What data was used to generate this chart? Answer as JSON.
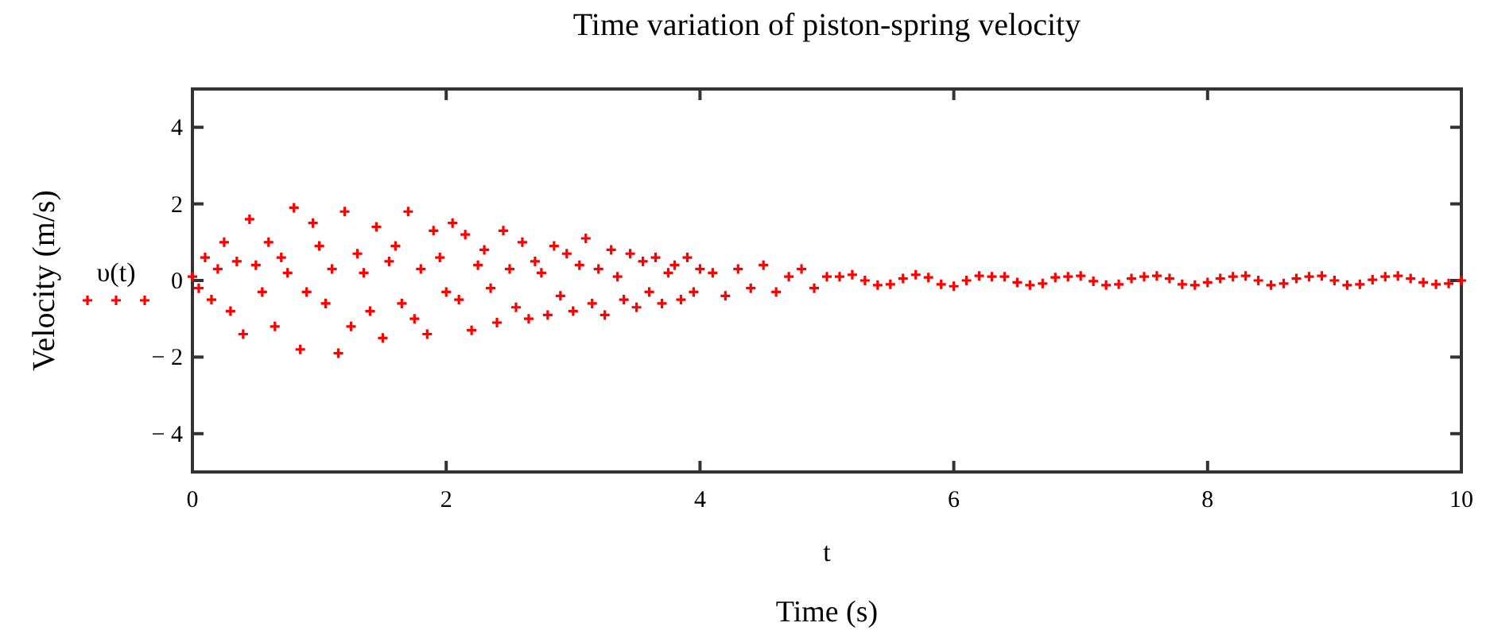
{
  "chart_data": {
    "type": "scatter",
    "title": "Time variation of piston-spring velocity",
    "xlabel": "Time (s)",
    "ylabel": "Velocity (m/s)",
    "annotations": [
      "t"
    ],
    "xlim": [
      0,
      10
    ],
    "xticks": [
      0,
      2,
      4,
      6,
      8,
      10
    ],
    "ylim": [
      -5,
      5
    ],
    "yticks": [
      -4,
      -2,
      0,
      2,
      4
    ],
    "grid": false,
    "legend": "left",
    "marker": "cross",
    "series": [
      {
        "name": "υ(t)",
        "color": "#ff0000",
        "x": [
          0,
          0.05,
          0.1,
          0.15,
          0.2,
          0.25,
          0.3,
          0.35,
          0.4,
          0.45,
          0.5,
          0.55,
          0.6,
          0.65,
          0.7,
          0.75,
          0.8,
          0.85,
          0.9,
          0.95,
          1,
          1.05,
          1.1,
          1.15,
          1.2,
          1.25,
          1.3,
          1.35,
          1.4,
          1.45,
          1.5,
          1.55,
          1.6,
          1.65,
          1.7,
          1.75,
          1.8,
          1.85,
          1.9,
          1.95,
          2,
          2.05,
          2.1,
          2.15,
          2.2,
          2.25,
          2.3,
          2.35,
          2.4,
          2.45,
          2.5,
          2.55,
          2.6,
          2.65,
          2.7,
          2.75,
          2.8,
          2.85,
          2.9,
          2.95,
          3,
          3.05,
          3.1,
          3.15,
          3.2,
          3.25,
          3.3,
          3.35,
          3.4,
          3.45,
          3.5,
          3.55,
          3.6,
          3.65,
          3.7,
          3.75,
          3.8,
          3.85,
          3.9,
          3.95,
          4,
          4.1,
          4.2,
          4.3,
          4.4,
          4.5,
          4.6,
          4.7,
          4.8,
          4.9,
          5,
          5.1,
          5.2,
          5.3,
          5.4,
          5.5,
          5.6,
          5.7,
          5.8,
          5.9,
          6,
          6.1,
          6.2,
          6.3,
          6.4,
          6.5,
          6.6,
          6.7,
          6.8,
          6.9,
          7,
          7.1,
          7.2,
          7.3,
          7.4,
          7.5,
          7.6,
          7.7,
          7.8,
          7.9,
          8,
          8.1,
          8.2,
          8.3,
          8.4,
          8.5,
          8.6,
          8.7,
          8.8,
          8.9,
          9,
          9.1,
          9.2,
          9.3,
          9.4,
          9.5,
          9.6,
          9.7,
          9.8,
          9.9,
          10
        ],
        "values": [
          0.1,
          -0.2,
          0.6,
          -0.5,
          0.3,
          1.0,
          -0.8,
          0.5,
          -1.4,
          1.6,
          0.4,
          -0.3,
          1.0,
          -1.2,
          0.6,
          0.2,
          1.9,
          -1.8,
          -0.3,
          1.5,
          0.9,
          -0.6,
          0.3,
          -1.9,
          1.8,
          -1.2,
          0.7,
          0.2,
          -0.8,
          1.4,
          -1.5,
          0.5,
          0.9,
          -0.6,
          1.8,
          -1.0,
          0.3,
          -1.4,
          1.3,
          0.6,
          -0.3,
          1.5,
          -0.5,
          1.2,
          -1.3,
          0.4,
          0.8,
          -0.2,
          -1.1,
          1.3,
          0.3,
          -0.7,
          1.0,
          -1.0,
          0.5,
          0.2,
          -0.9,
          0.9,
          -0.4,
          0.7,
          -0.8,
          0.4,
          1.1,
          -0.6,
          0.3,
          -0.9,
          0.8,
          0.1,
          -0.5,
          0.7,
          -0.7,
          0.5,
          -0.3,
          0.6,
          -0.6,
          0.2,
          0.4,
          -0.5,
          0.6,
          -0.3,
          0.3,
          0.2,
          -0.4,
          0.3,
          -0.2,
          0.4,
          -0.3,
          0.1,
          0.3,
          -0.2,
          0.1,
          0.1,
          0.15,
          0.0,
          -0.12,
          -0.1,
          0.05,
          0.15,
          0.08,
          -0.1,
          -0.15,
          0.0,
          0.12,
          0.1,
          0.1,
          -0.05,
          -0.12,
          -0.08,
          0.08,
          0.1,
          0.12,
          -0.02,
          -0.12,
          -0.1,
          0.05,
          0.1,
          0.12,
          0.05,
          -0.1,
          -0.12,
          -0.05,
          0.05,
          0.1,
          0.12,
          0.0,
          -0.12,
          -0.08,
          0.05,
          0.1,
          0.12,
          0.0,
          -0.12,
          -0.1,
          0.02,
          0.1,
          0.12,
          0.05,
          -0.05,
          -0.1,
          -0.08,
          0.0
        ]
      }
    ]
  }
}
